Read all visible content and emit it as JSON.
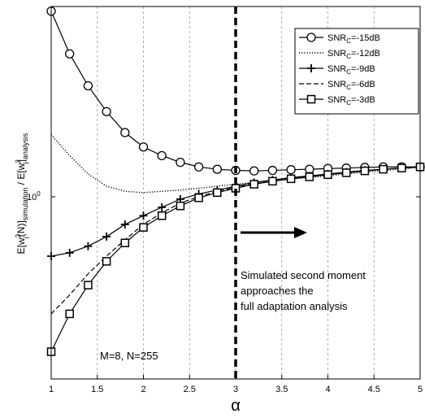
{
  "chart_data": {
    "type": "line",
    "xlabel": "α",
    "ylabel": "E[w_j²(N)]_simulation / E[w_j²]_analysis",
    "xlim": [
      1,
      5
    ],
    "ylog": true,
    "ylim": [
      0.4,
      2.0
    ],
    "xticks": [
      "1",
      "1.5",
      "2",
      "2.5",
      "3",
      "3.5",
      "4",
      "4.5",
      "5"
    ],
    "yticks": [
      "10⁰"
    ],
    "grid": "vertical dashed",
    "legend_position": "top-right",
    "x": [
      1.0,
      1.2,
      1.4,
      1.6,
      1.8,
      2.0,
      2.2,
      2.4,
      2.6,
      2.8,
      3.0,
      3.2,
      3.4,
      3.6,
      3.8,
      4.0,
      4.2,
      4.4,
      4.6,
      4.8,
      5.0
    ],
    "series": [
      {
        "name": "SNR_C=-15dB",
        "marker": "circle",
        "dash": "solid",
        "values": [
          1.96,
          1.63,
          1.42,
          1.27,
          1.16,
          1.09,
          1.05,
          1.02,
          1.0,
          0.99,
          0.985,
          0.983,
          0.985,
          0.988,
          0.99,
          0.993,
          0.995,
          0.998,
          1.0,
          1.0,
          1.0
        ]
      },
      {
        "name": "SNR_C=-12dB",
        "marker": "none",
        "dash": "dotted",
        "values": [
          1.15,
          1.05,
          0.97,
          0.92,
          0.9,
          0.895,
          0.9,
          0.905,
          0.912,
          0.92,
          0.928,
          0.935,
          0.94,
          0.95,
          0.955,
          0.963,
          0.97,
          0.978,
          0.985,
          0.99,
          1.0
        ]
      },
      {
        "name": "SNR_C=-9dB",
        "marker": "plus",
        "dash": "solid",
        "values": [
          0.68,
          0.69,
          0.71,
          0.74,
          0.78,
          0.81,
          0.84,
          0.87,
          0.89,
          0.905,
          0.92,
          0.935,
          0.945,
          0.955,
          0.962,
          0.97,
          0.978,
          0.985,
          0.99,
          0.995,
          1.0
        ]
      },
      {
        "name": "SNR_C=-6dB",
        "marker": "none",
        "dash": "dashed",
        "values": [
          0.53,
          0.575,
          0.63,
          0.68,
          0.73,
          0.78,
          0.82,
          0.855,
          0.88,
          0.9,
          0.915,
          0.93,
          0.94,
          0.95,
          0.96,
          0.968,
          0.975,
          0.983,
          0.99,
          0.995,
          1.0
        ]
      },
      {
        "name": "SNR_C=-3dB",
        "marker": "square",
        "dash": "solid",
        "values": [
          0.45,
          0.53,
          0.6,
          0.665,
          0.72,
          0.77,
          0.81,
          0.845,
          0.875,
          0.895,
          0.912,
          0.928,
          0.94,
          0.95,
          0.958,
          0.967,
          0.975,
          0.983,
          0.99,
          0.995,
          1.0
        ]
      }
    ],
    "vline": 3,
    "annotations": {
      "arrow_text": [
        "Simulated second moment",
        "approaches the",
        "full adaptation analysis"
      ],
      "params": "M=8, N=255"
    }
  },
  "legend": {
    "labels": [
      "SNR",
      "SNR",
      "SNR",
      "SNR",
      "SNR"
    ],
    "subs": [
      "C",
      "C",
      "C",
      "C",
      "C"
    ],
    "values": [
      "=-15dB",
      "=-12dB",
      "=-9dB",
      "=-6dB",
      "=-3dB"
    ]
  },
  "axis": {
    "xlabel": "α",
    "ytick_base": "10",
    "ytick_exp": "0",
    "ylabel_parts": [
      "E[w",
      "2",
      "(N)]",
      "simulation",
      " / E[w",
      "2",
      "]",
      "analysis"
    ],
    "ylabel_j": [
      "j",
      "j"
    ]
  }
}
